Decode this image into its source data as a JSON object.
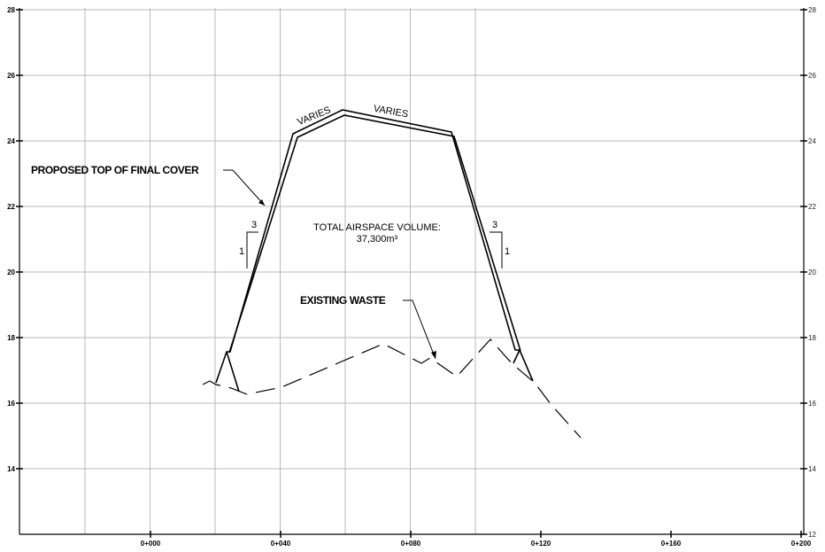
{
  "y_axis": {
    "ticks": [
      14,
      16,
      18,
      20,
      22,
      24,
      26,
      28
    ],
    "left_labels": [
      "14",
      "16",
      "18",
      "20",
      "22",
      "24",
      "26",
      "28"
    ],
    "right_labels": [
      "12",
      "14",
      "16",
      "18",
      "20",
      "22",
      "24",
      "26",
      "28"
    ]
  },
  "x_axis": {
    "labels": [
      "0+000",
      "0+040",
      "0+080",
      "0+120",
      "0+160",
      "0+200"
    ]
  },
  "callouts": {
    "final_cover": "PROPOSED TOP OF FINAL COVER",
    "existing_waste": "EXISTING WASTE"
  },
  "volume_note": {
    "line1": "TOTAL AIRSPACE VOLUME:",
    "line2": "37,300m³"
  },
  "varies_labels": [
    "VARIES",
    "VARIES"
  ],
  "slopes": {
    "left": {
      "run": "3",
      "rise": "1"
    },
    "right": {
      "run": "3",
      "rise": "1"
    }
  }
}
